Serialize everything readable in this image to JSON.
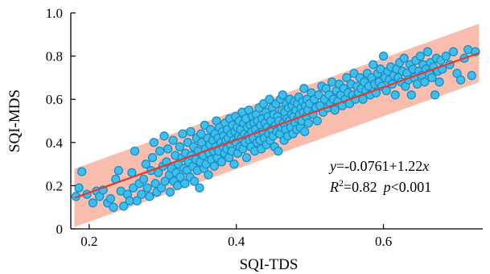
{
  "chart_data": {
    "type": "scatter",
    "title": "",
    "xlabel": "SQI-TDS",
    "ylabel": "SQI-MDS",
    "xlim": [
      0.175,
      0.735
    ],
    "ylim": [
      0.0,
      1.0
    ],
    "xticks": [
      0.2,
      0.4,
      0.6
    ],
    "xtick_labels": [
      "0.2",
      "0.4",
      "0.6"
    ],
    "yticks": [
      0.0,
      0.2,
      0.4,
      0.6,
      0.8,
      1.0
    ],
    "ytick_labels": [
      "0",
      "0.2",
      "0.4",
      "0.6",
      "0.8",
      "1.0"
    ],
    "grid": false,
    "legend": "none",
    "regression": {
      "intercept": -0.0761,
      "slope": 1.22
    },
    "prediction_band": {
      "half_width": 0.135
    },
    "annotations": {
      "equation": {
        "prefix": "y",
        "value": "=-0.0761+1.22",
        "var": "x"
      },
      "r2": {
        "label": "R",
        "sup": "2",
        "value": "=0.82",
        "p_label": "p",
        "p_value": "<0.001"
      }
    },
    "colors": {
      "point_fill": "#3dbfe8",
      "point_stroke": "#1a8ccc",
      "line": "#e23b2e",
      "band": "#f7b29f"
    },
    "points": [
      [
        0.182,
        0.15
      ],
      [
        0.186,
        0.19
      ],
      [
        0.19,
        0.265
      ],
      [
        0.197,
        0.16
      ],
      [
        0.205,
        0.12
      ],
      [
        0.21,
        0.175
      ],
      [
        0.214,
        0.15
      ],
      [
        0.219,
        0.18
      ],
      [
        0.225,
        0.12
      ],
      [
        0.229,
        0.14
      ],
      [
        0.233,
        0.1
      ],
      [
        0.236,
        0.23
      ],
      [
        0.24,
        0.27
      ],
      [
        0.243,
        0.175
      ],
      [
        0.247,
        0.105
      ],
      [
        0.252,
        0.16
      ],
      [
        0.255,
        0.13
      ],
      [
        0.258,
        0.26
      ],
      [
        0.26,
        0.19
      ],
      [
        0.262,
        0.36
      ],
      [
        0.265,
        0.13
      ],
      [
        0.268,
        0.21
      ],
      [
        0.271,
        0.16
      ],
      [
        0.274,
        0.23
      ],
      [
        0.277,
        0.3
      ],
      [
        0.279,
        0.19
      ],
      [
        0.282,
        0.15
      ],
      [
        0.284,
        0.27
      ],
      [
        0.286,
        0.33
      ],
      [
        0.288,
        0.4
      ],
      [
        0.29,
        0.21
      ],
      [
        0.292,
        0.17
      ],
      [
        0.294,
        0.26
      ],
      [
        0.296,
        0.36
      ],
      [
        0.298,
        0.19
      ],
      [
        0.3,
        0.29
      ],
      [
        0.302,
        0.43
      ],
      [
        0.303,
        0.22
      ],
      [
        0.305,
        0.31
      ],
      [
        0.307,
        0.37
      ],
      [
        0.309,
        0.25
      ],
      [
        0.31,
        0.17
      ],
      [
        0.312,
        0.28
      ],
      [
        0.314,
        0.41
      ],
      [
        0.315,
        0.22
      ],
      [
        0.317,
        0.34
      ],
      [
        0.318,
        0.26
      ],
      [
        0.32,
        0.2
      ],
      [
        0.321,
        0.3
      ],
      [
        0.323,
        0.38
      ],
      [
        0.324,
        0.24
      ],
      [
        0.326,
        0.33
      ],
      [
        0.327,
        0.44
      ],
      [
        0.329,
        0.28
      ],
      [
        0.33,
        0.21
      ],
      [
        0.331,
        0.35
      ],
      [
        0.333,
        0.27
      ],
      [
        0.334,
        0.4
      ],
      [
        0.335,
        0.31
      ],
      [
        0.337,
        0.24
      ],
      [
        0.338,
        0.45
      ],
      [
        0.339,
        0.34
      ],
      [
        0.341,
        0.29
      ],
      [
        0.342,
        0.38
      ],
      [
        0.343,
        0.22
      ],
      [
        0.345,
        0.32
      ],
      [
        0.346,
        0.42
      ],
      [
        0.347,
        0.27
      ],
      [
        0.348,
        0.36
      ],
      [
        0.35,
        0.19
      ],
      [
        0.351,
        0.31
      ],
      [
        0.352,
        0.44
      ],
      [
        0.353,
        0.4
      ],
      [
        0.355,
        0.34
      ],
      [
        0.356,
        0.28
      ],
      [
        0.357,
        0.48
      ],
      [
        0.358,
        0.37
      ],
      [
        0.359,
        0.3
      ],
      [
        0.361,
        0.42
      ],
      [
        0.362,
        0.25
      ],
      [
        0.363,
        0.35
      ],
      [
        0.364,
        0.39
      ],
      [
        0.365,
        0.46
      ],
      [
        0.366,
        0.32
      ],
      [
        0.368,
        0.41
      ],
      [
        0.369,
        0.36
      ],
      [
        0.37,
        0.29
      ],
      [
        0.371,
        0.44
      ],
      [
        0.372,
        0.38
      ],
      [
        0.373,
        0.5
      ],
      [
        0.374,
        0.33
      ],
      [
        0.375,
        0.42
      ],
      [
        0.376,
        0.36
      ],
      [
        0.377,
        0.47
      ],
      [
        0.379,
        0.4
      ],
      [
        0.38,
        0.31
      ],
      [
        0.381,
        0.45
      ],
      [
        0.382,
        0.38
      ],
      [
        0.383,
        0.43
      ],
      [
        0.384,
        0.35
      ],
      [
        0.385,
        0.49
      ],
      [
        0.386,
        0.41
      ],
      [
        0.387,
        0.37
      ],
      [
        0.388,
        0.46
      ],
      [
        0.389,
        0.42
      ],
      [
        0.39,
        0.33
      ],
      [
        0.391,
        0.51
      ],
      [
        0.392,
        0.39
      ],
      [
        0.393,
        0.44
      ],
      [
        0.394,
        0.36
      ],
      [
        0.395,
        0.48
      ],
      [
        0.396,
        0.41
      ],
      [
        0.397,
        0.3
      ],
      [
        0.398,
        0.45
      ],
      [
        0.399,
        0.52
      ],
      [
        0.4,
        0.4
      ],
      [
        0.401,
        0.47
      ],
      [
        0.402,
        0.35
      ],
      [
        0.403,
        0.43
      ],
      [
        0.404,
        0.5
      ],
      [
        0.405,
        0.38
      ],
      [
        0.406,
        0.46
      ],
      [
        0.407,
        0.42
      ],
      [
        0.408,
        0.54
      ],
      [
        0.409,
        0.37
      ],
      [
        0.41,
        0.49
      ],
      [
        0.411,
        0.44
      ],
      [
        0.412,
        0.4
      ],
      [
        0.413,
        0.51
      ],
      [
        0.414,
        0.33
      ],
      [
        0.415,
        0.47
      ],
      [
        0.416,
        0.43
      ],
      [
        0.417,
        0.55
      ],
      [
        0.418,
        0.41
      ],
      [
        0.419,
        0.48
      ],
      [
        0.42,
        0.38
      ],
      [
        0.421,
        0.45
      ],
      [
        0.422,
        0.52
      ],
      [
        0.423,
        0.42
      ],
      [
        0.424,
        0.49
      ],
      [
        0.425,
        0.36
      ],
      [
        0.426,
        0.46
      ],
      [
        0.427,
        0.53
      ],
      [
        0.428,
        0.4
      ],
      [
        0.429,
        0.5
      ],
      [
        0.43,
        0.44
      ],
      [
        0.431,
        0.56
      ],
      [
        0.432,
        0.41
      ],
      [
        0.433,
        0.48
      ],
      [
        0.434,
        0.37
      ],
      [
        0.435,
        0.51
      ],
      [
        0.436,
        0.45
      ],
      [
        0.437,
        0.58
      ],
      [
        0.438,
        0.42
      ],
      [
        0.439,
        0.49
      ],
      [
        0.44,
        0.54
      ],
      [
        0.441,
        0.39
      ],
      [
        0.442,
        0.47
      ],
      [
        0.443,
        0.52
      ],
      [
        0.444,
        0.44
      ],
      [
        0.445,
        0.6
      ],
      [
        0.446,
        0.41
      ],
      [
        0.447,
        0.5
      ],
      [
        0.448,
        0.46
      ],
      [
        0.449,
        0.56
      ],
      [
        0.45,
        0.43
      ],
      [
        0.451,
        0.53
      ],
      [
        0.452,
        0.38
      ],
      [
        0.453,
        0.48
      ],
      [
        0.454,
        0.58
      ],
      [
        0.455,
        0.45
      ],
      [
        0.456,
        0.52
      ],
      [
        0.457,
        0.36
      ],
      [
        0.458,
        0.5
      ],
      [
        0.459,
        0.44
      ],
      [
        0.46,
        0.6
      ],
      [
        0.461,
        0.47
      ],
      [
        0.462,
        0.55
      ],
      [
        0.463,
        0.62
      ],
      [
        0.464,
        0.49
      ],
      [
        0.465,
        0.41
      ],
      [
        0.466,
        0.54
      ],
      [
        0.467,
        0.46
      ],
      [
        0.468,
        0.58
      ],
      [
        0.469,
        0.51
      ],
      [
        0.47,
        0.43
      ],
      [
        0.471,
        0.56
      ],
      [
        0.472,
        0.5
      ],
      [
        0.473,
        0.6
      ],
      [
        0.474,
        0.47
      ],
      [
        0.475,
        0.53
      ],
      [
        0.476,
        0.57
      ],
      [
        0.477,
        0.44
      ],
      [
        0.478,
        0.52
      ],
      [
        0.479,
        0.59
      ],
      [
        0.48,
        0.49
      ],
      [
        0.481,
        0.55
      ],
      [
        0.482,
        0.46
      ],
      [
        0.483,
        0.58
      ],
      [
        0.484,
        0.51
      ],
      [
        0.485,
        0.61
      ],
      [
        0.486,
        0.53
      ],
      [
        0.487,
        0.47
      ],
      [
        0.488,
        0.56
      ],
      [
        0.489,
        0.5
      ],
      [
        0.49,
        0.59
      ],
      [
        0.491,
        0.54
      ],
      [
        0.492,
        0.65
      ],
      [
        0.493,
        0.45
      ],
      [
        0.494,
        0.57
      ],
      [
        0.495,
        0.52
      ],
      [
        0.496,
        0.6
      ],
      [
        0.497,
        0.55
      ],
      [
        0.498,
        0.49
      ],
      [
        0.5,
        0.58
      ],
      [
        0.502,
        0.63
      ],
      [
        0.504,
        0.53
      ],
      [
        0.506,
        0.6
      ],
      [
        0.508,
        0.56
      ],
      [
        0.51,
        0.5
      ],
      [
        0.512,
        0.62
      ],
      [
        0.514,
        0.57
      ],
      [
        0.516,
        0.66
      ],
      [
        0.518,
        0.54
      ],
      [
        0.52,
        0.6
      ],
      [
        0.522,
        0.65
      ],
      [
        0.524,
        0.56
      ],
      [
        0.526,
        0.62
      ],
      [
        0.528,
        0.58
      ],
      [
        0.53,
        0.68
      ],
      [
        0.532,
        0.6
      ],
      [
        0.534,
        0.55
      ],
      [
        0.536,
        0.64
      ],
      [
        0.538,
        0.59
      ],
      [
        0.54,
        0.67
      ],
      [
        0.542,
        0.62
      ],
      [
        0.544,
        0.57
      ],
      [
        0.546,
        0.65
      ],
      [
        0.548,
        0.6
      ],
      [
        0.55,
        0.7
      ],
      [
        0.552,
        0.63
      ],
      [
        0.554,
        0.58
      ],
      [
        0.556,
        0.67
      ],
      [
        0.558,
        0.62
      ],
      [
        0.56,
        0.72
      ],
      [
        0.562,
        0.6
      ],
      [
        0.564,
        0.66
      ],
      [
        0.566,
        0.63
      ],
      [
        0.568,
        0.7
      ],
      [
        0.57,
        0.65
      ],
      [
        0.572,
        0.6
      ],
      [
        0.574,
        0.68
      ],
      [
        0.576,
        0.64
      ],
      [
        0.578,
        0.72
      ],
      [
        0.58,
        0.66
      ],
      [
        0.582,
        0.62
      ],
      [
        0.584,
        0.7
      ],
      [
        0.586,
        0.76
      ],
      [
        0.588,
        0.67
      ],
      [
        0.59,
        0.63
      ],
      [
        0.592,
        0.72
      ],
      [
        0.594,
        0.68
      ],
      [
        0.596,
        0.74
      ],
      [
        0.598,
        0.66
      ],
      [
        0.6,
        0.8
      ],
      [
        0.602,
        0.7
      ],
      [
        0.604,
        0.64
      ],
      [
        0.606,
        0.73
      ],
      [
        0.608,
        0.69
      ],
      [
        0.61,
        0.75
      ],
      [
        0.612,
        0.67
      ],
      [
        0.614,
        0.71
      ],
      [
        0.616,
        0.62
      ],
      [
        0.618,
        0.74
      ],
      [
        0.62,
        0.7
      ],
      [
        0.622,
        0.77
      ],
      [
        0.624,
        0.68
      ],
      [
        0.626,
        0.73
      ],
      [
        0.628,
        0.79
      ],
      [
        0.63,
        0.66
      ],
      [
        0.632,
        0.72
      ],
      [
        0.634,
        0.69
      ],
      [
        0.636,
        0.76
      ],
      [
        0.638,
        0.62
      ],
      [
        0.64,
        0.74
      ],
      [
        0.642,
        0.7
      ],
      [
        0.644,
        0.78
      ],
      [
        0.646,
        0.67
      ],
      [
        0.648,
        0.73
      ],
      [
        0.65,
        0.8
      ],
      [
        0.652,
        0.71
      ],
      [
        0.654,
        0.76
      ],
      [
        0.656,
        0.68
      ],
      [
        0.658,
        0.74
      ],
      [
        0.66,
        0.82
      ],
      [
        0.662,
        0.72
      ],
      [
        0.664,
        0.77
      ],
      [
        0.666,
        0.7
      ],
      [
        0.668,
        0.75
      ],
      [
        0.67,
        0.62
      ],
      [
        0.672,
        0.79
      ],
      [
        0.674,
        0.73
      ],
      [
        0.676,
        0.68
      ],
      [
        0.678,
        0.78
      ],
      [
        0.68,
        0.74
      ],
      [
        0.685,
        0.8
      ],
      [
        0.69,
        0.76
      ],
      [
        0.695,
        0.82
      ],
      [
        0.7,
        0.72
      ],
      [
        0.705,
        0.69
      ],
      [
        0.71,
        0.79
      ],
      [
        0.715,
        0.83
      ],
      [
        0.72,
        0.71
      ],
      [
        0.725,
        0.82
      ]
    ]
  }
}
